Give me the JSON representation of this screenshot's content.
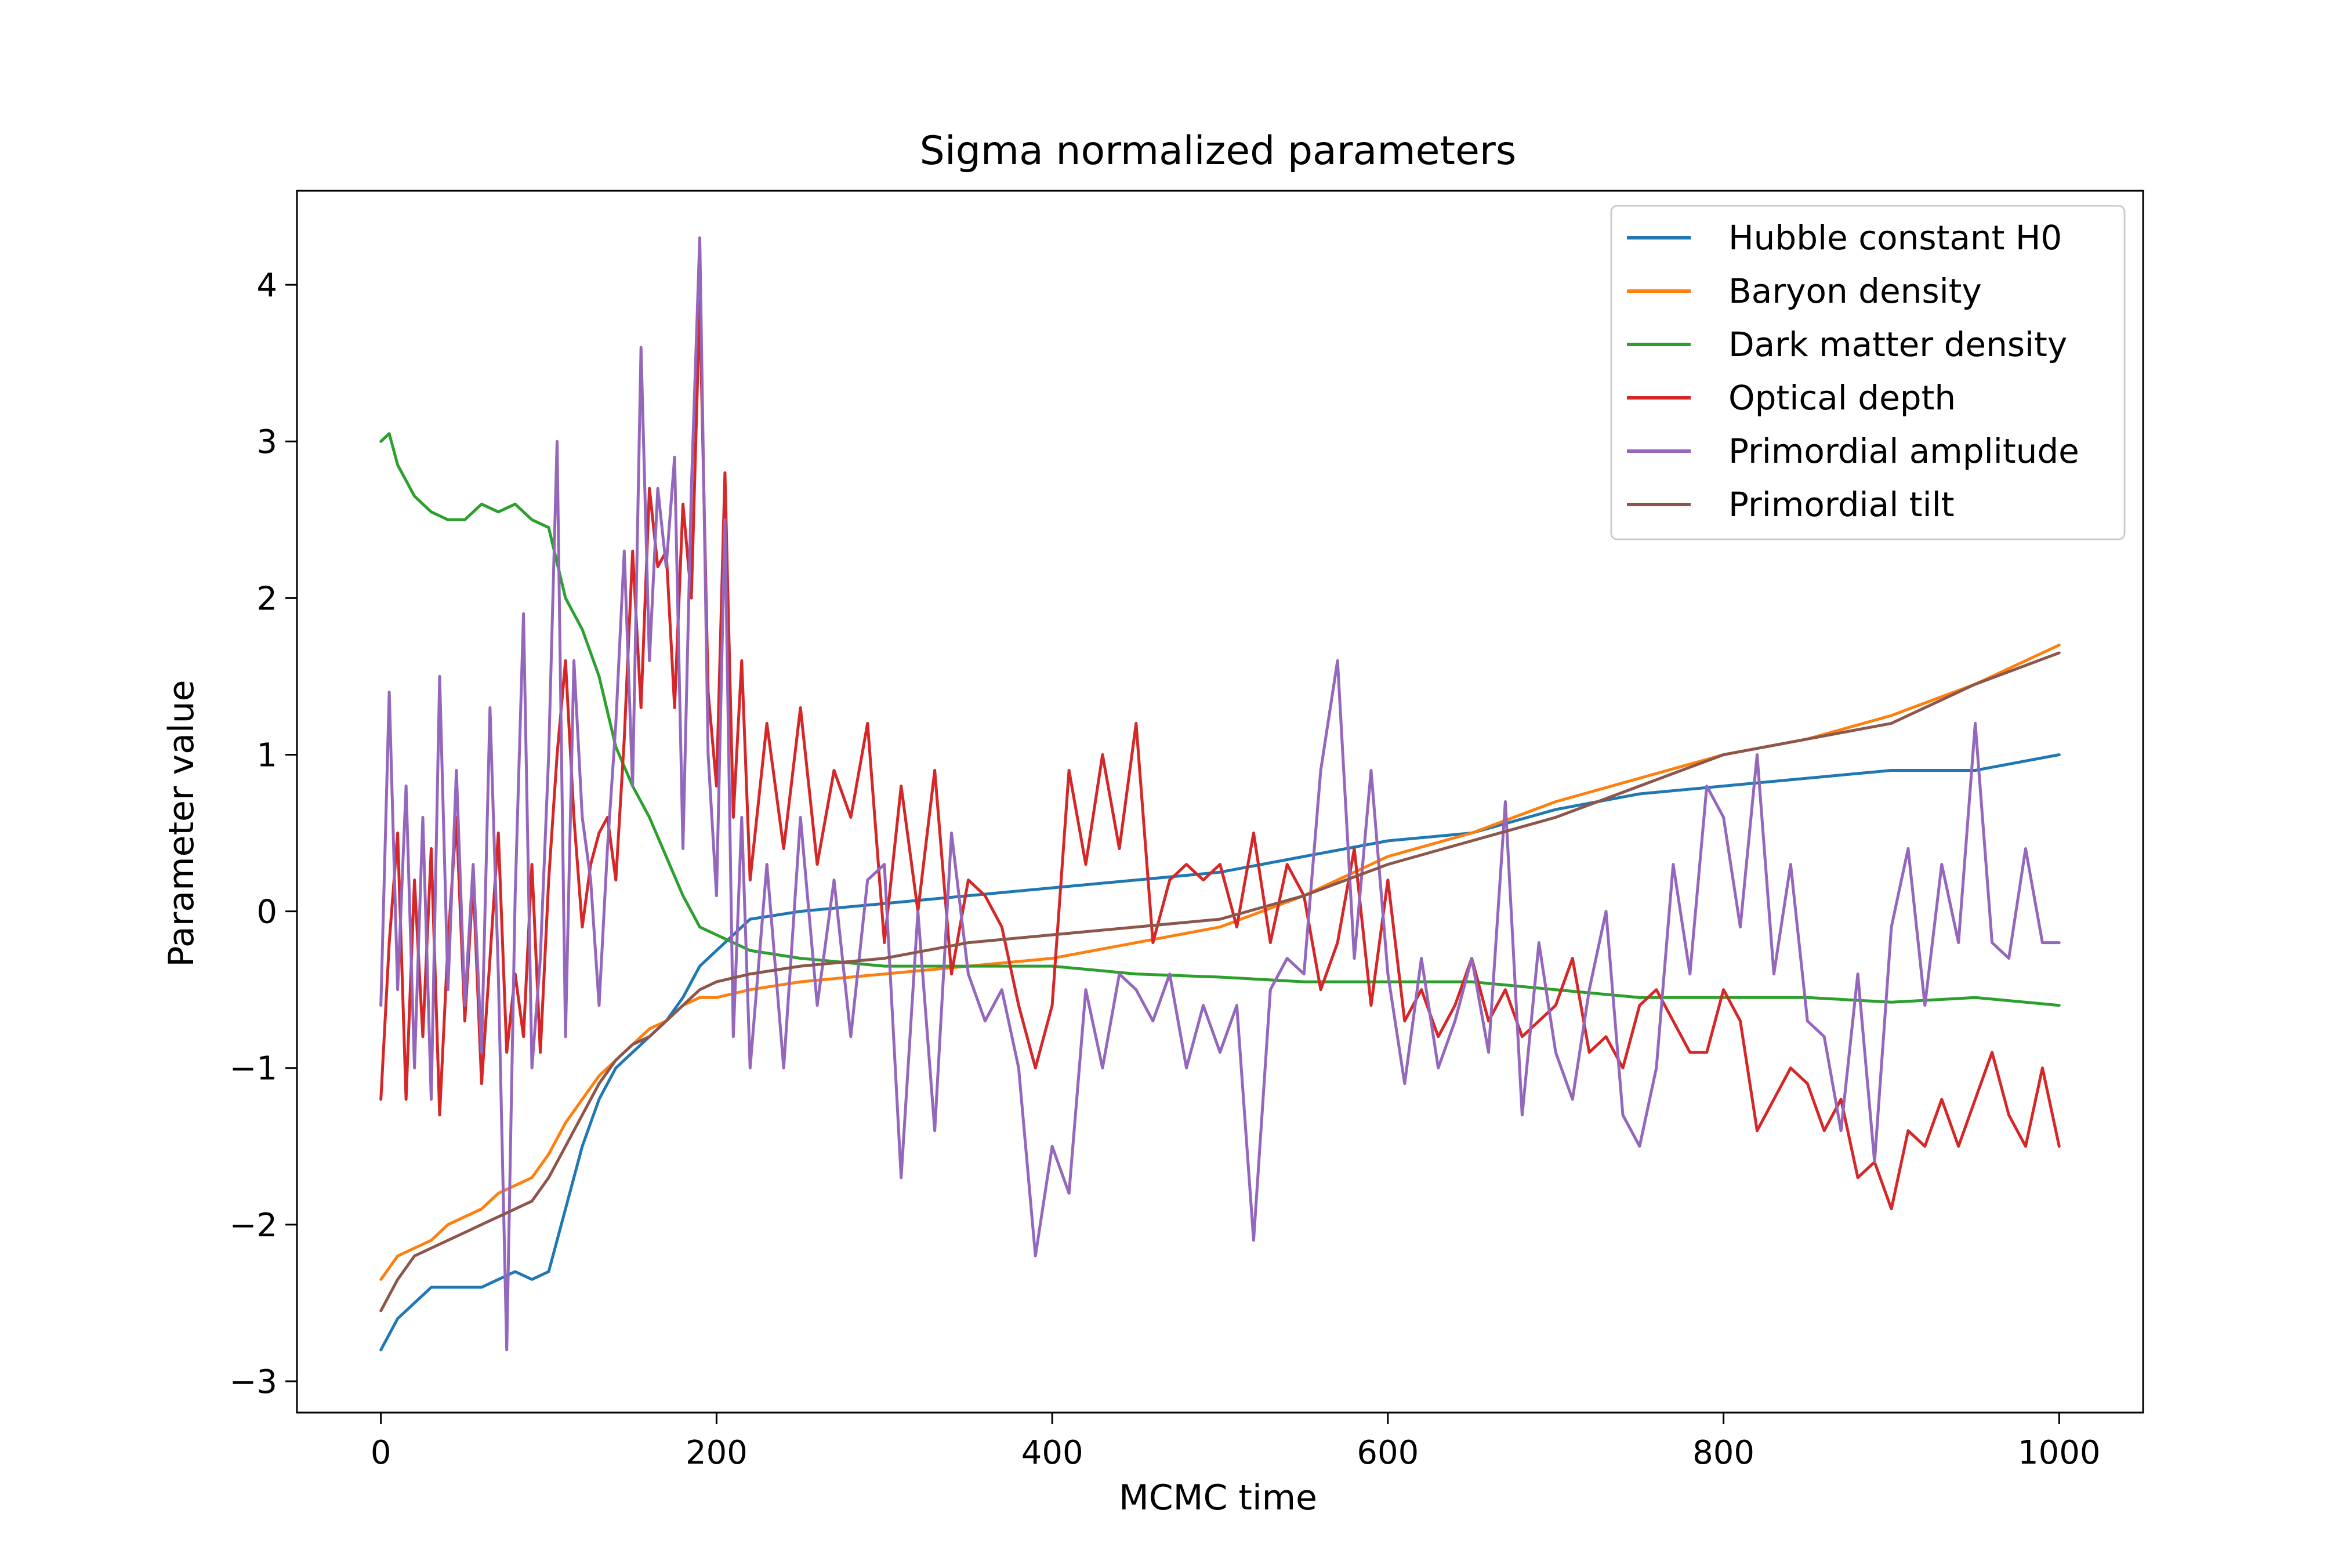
{
  "chart_data": {
    "type": "line",
    "title": "Sigma normalized parameters",
    "xlabel": "MCMC time",
    "ylabel": "Parameter value",
    "xlim": [
      -50,
      1050
    ],
    "ylim": [
      -3.2,
      4.6
    ],
    "xticks": [
      0,
      200,
      400,
      600,
      800,
      1000
    ],
    "yticks": [
      -3,
      -2,
      -1,
      0,
      1,
      2,
      3,
      4
    ],
    "xtick_labels": [
      "0",
      "200",
      "400",
      "600",
      "800",
      "1000"
    ],
    "ytick_labels": [
      "−3",
      "−2",
      "−1",
      "0",
      "1",
      "2",
      "3",
      "4"
    ],
    "grid": false,
    "legend_position": "upper right",
    "series": [
      {
        "name": "Hubble constant H0",
        "color": "#1f77b4",
        "x": [
          0,
          10,
          20,
          30,
          40,
          50,
          60,
          70,
          80,
          90,
          100,
          110,
          120,
          130,
          140,
          150,
          160,
          170,
          180,
          190,
          200,
          220,
          250,
          300,
          350,
          400,
          450,
          500,
          550,
          600,
          650,
          700,
          750,
          800,
          850,
          900,
          950,
          1000
        ],
        "values": [
          -2.8,
          -2.6,
          -2.5,
          -2.4,
          -2.4,
          -2.4,
          -2.4,
          -2.35,
          -2.3,
          -2.35,
          -2.3,
          -1.9,
          -1.5,
          -1.2,
          -1.0,
          -0.9,
          -0.8,
          -0.7,
          -0.55,
          -0.35,
          -0.25,
          -0.05,
          0.0,
          0.05,
          0.1,
          0.15,
          0.2,
          0.25,
          0.35,
          0.45,
          0.5,
          0.65,
          0.75,
          0.8,
          0.85,
          0.9,
          0.9,
          1.0
        ]
      },
      {
        "name": "Baryon density",
        "color": "#ff7f0e",
        "x": [
          0,
          10,
          20,
          30,
          40,
          50,
          60,
          70,
          80,
          90,
          100,
          110,
          120,
          130,
          140,
          150,
          160,
          170,
          180,
          190,
          200,
          220,
          250,
          300,
          350,
          400,
          450,
          500,
          550,
          600,
          650,
          700,
          750,
          800,
          850,
          900,
          950,
          1000
        ],
        "values": [
          -2.35,
          -2.2,
          -2.15,
          -2.1,
          -2.0,
          -1.95,
          -1.9,
          -1.8,
          -1.75,
          -1.7,
          -1.55,
          -1.35,
          -1.2,
          -1.05,
          -0.95,
          -0.85,
          -0.75,
          -0.7,
          -0.6,
          -0.55,
          -0.55,
          -0.5,
          -0.45,
          -0.4,
          -0.35,
          -0.3,
          -0.2,
          -0.1,
          0.1,
          0.35,
          0.5,
          0.7,
          0.85,
          1.0,
          1.1,
          1.25,
          1.45,
          1.7
        ]
      },
      {
        "name": "Dark matter density",
        "color": "#2ca02c",
        "x": [
          0,
          5,
          10,
          20,
          30,
          40,
          50,
          60,
          70,
          80,
          90,
          100,
          110,
          120,
          130,
          140,
          150,
          160,
          170,
          180,
          190,
          200,
          220,
          250,
          300,
          350,
          400,
          450,
          500,
          550,
          600,
          650,
          700,
          750,
          800,
          850,
          900,
          950,
          1000
        ],
        "values": [
          3.0,
          3.05,
          2.85,
          2.65,
          2.55,
          2.5,
          2.5,
          2.6,
          2.55,
          2.6,
          2.5,
          2.45,
          2.0,
          1.8,
          1.5,
          1.05,
          0.8,
          0.6,
          0.35,
          0.1,
          -0.1,
          -0.15,
          -0.25,
          -0.3,
          -0.35,
          -0.35,
          -0.35,
          -0.4,
          -0.42,
          -0.45,
          -0.45,
          -0.45,
          -0.5,
          -0.55,
          -0.55,
          -0.55,
          -0.58,
          -0.55,
          -0.6
        ]
      },
      {
        "name": "Optical depth",
        "color": "#d62728",
        "x": [
          0,
          5,
          10,
          15,
          20,
          25,
          30,
          35,
          40,
          45,
          50,
          55,
          60,
          65,
          70,
          75,
          80,
          85,
          90,
          95,
          100,
          105,
          110,
          115,
          120,
          125,
          130,
          135,
          140,
          145,
          150,
          155,
          160,
          165,
          170,
          175,
          180,
          185,
          190,
          195,
          200,
          205,
          210,
          215,
          220,
          230,
          240,
          250,
          260,
          270,
          280,
          290,
          300,
          310,
          320,
          330,
          340,
          350,
          360,
          370,
          380,
          390,
          400,
          410,
          420,
          430,
          440,
          450,
          460,
          470,
          480,
          490,
          500,
          510,
          520,
          530,
          540,
          550,
          560,
          570,
          580,
          590,
          600,
          610,
          620,
          630,
          640,
          650,
          660,
          670,
          680,
          690,
          700,
          710,
          720,
          730,
          740,
          750,
          760,
          770,
          780,
          790,
          800,
          810,
          820,
          830,
          840,
          850,
          860,
          870,
          880,
          890,
          900,
          910,
          920,
          930,
          940,
          950,
          960,
          970,
          980,
          990,
          1000
        ],
        "values": [
          -1.2,
          -0.2,
          0.5,
          -1.2,
          0.2,
          -0.8,
          0.4,
          -1.3,
          -0.2,
          0.6,
          -0.7,
          0.2,
          -1.1,
          -0.3,
          0.5,
          -0.9,
          -0.4,
          -0.8,
          0.3,
          -0.9,
          0.2,
          1.0,
          1.6,
          0.6,
          -0.1,
          0.3,
          0.5,
          0.6,
          0.2,
          1.1,
          2.3,
          1.3,
          2.7,
          2.2,
          2.3,
          1.3,
          2.6,
          2.0,
          3.9,
          1.4,
          0.8,
          2.8,
          0.6,
          1.6,
          0.2,
          1.2,
          0.4,
          1.3,
          0.3,
          0.9,
          0.6,
          1.2,
          -0.2,
          0.8,
          0.0,
          0.9,
          -0.4,
          0.2,
          0.1,
          -0.1,
          -0.6,
          -1.0,
          -0.6,
          0.9,
          0.3,
          1.0,
          0.4,
          1.2,
          -0.2,
          0.2,
          0.3,
          0.2,
          0.3,
          -0.1,
          0.5,
          -0.2,
          0.3,
          0.1,
          -0.5,
          -0.2,
          0.4,
          -0.6,
          0.2,
          -0.7,
          -0.5,
          -0.8,
          -0.6,
          -0.3,
          -0.7,
          -0.5,
          -0.8,
          -0.7,
          -0.6,
          -0.3,
          -0.9,
          -0.8,
          -1.0,
          -0.6,
          -0.5,
          -0.7,
          -0.9,
          -0.9,
          -0.5,
          -0.7,
          -1.4,
          -1.2,
          -1.0,
          -1.1,
          -1.4,
          -1.2,
          -1.7,
          -1.6,
          -1.9,
          -1.4,
          -1.5,
          -1.2,
          -1.5,
          -1.2,
          -0.9,
          -1.3,
          -1.5,
          -1.0,
          -1.5
        ]
      },
      {
        "name": "Primordial amplitude",
        "color": "#9467bd",
        "x": [
          0,
          5,
          10,
          15,
          20,
          25,
          30,
          35,
          40,
          45,
          50,
          55,
          60,
          65,
          70,
          75,
          80,
          85,
          90,
          95,
          100,
          105,
          110,
          115,
          120,
          125,
          130,
          135,
          140,
          145,
          150,
          155,
          160,
          165,
          170,
          175,
          180,
          185,
          190,
          195,
          200,
          205,
          210,
          215,
          220,
          230,
          240,
          250,
          260,
          270,
          280,
          290,
          300,
          310,
          320,
          330,
          340,
          350,
          360,
          370,
          380,
          390,
          400,
          410,
          420,
          430,
          440,
          450,
          460,
          470,
          480,
          490,
          500,
          510,
          520,
          530,
          540,
          550,
          560,
          570,
          580,
          590,
          600,
          610,
          620,
          630,
          640,
          650,
          660,
          670,
          680,
          690,
          700,
          710,
          720,
          730,
          740,
          750,
          760,
          770,
          780,
          790,
          800,
          810,
          820,
          830,
          840,
          850,
          860,
          870,
          880,
          890,
          900,
          910,
          920,
          930,
          940,
          950,
          960,
          970,
          980,
          990,
          1000
        ],
        "values": [
          -0.6,
          1.4,
          -0.5,
          0.8,
          -1.0,
          0.6,
          -1.2,
          1.5,
          -0.5,
          0.9,
          -0.6,
          0.3,
          -0.9,
          1.3,
          -0.4,
          -2.8,
          0.1,
          1.9,
          -1.0,
          -0.3,
          1.0,
          3.0,
          -0.8,
          1.6,
          0.6,
          0.2,
          -0.6,
          0.4,
          1.2,
          2.3,
          0.8,
          3.6,
          1.6,
          2.7,
          2.2,
          2.9,
          0.4,
          2.7,
          4.3,
          1.0,
          0.1,
          2.5,
          -0.8,
          0.6,
          -1.0,
          0.3,
          -1.0,
          0.6,
          -0.6,
          0.2,
          -0.8,
          0.2,
          0.3,
          -1.7,
          0.0,
          -1.4,
          0.5,
          -0.4,
          -0.7,
          -0.5,
          -1.0,
          -2.2,
          -1.5,
          -1.8,
          -0.5,
          -1.0,
          -0.4,
          -0.5,
          -0.7,
          -0.4,
          -1.0,
          -0.6,
          -0.9,
          -0.6,
          -2.1,
          -0.5,
          -0.3,
          -0.4,
          0.9,
          1.6,
          -0.3,
          0.9,
          -0.4,
          -1.1,
          -0.3,
          -1.0,
          -0.7,
          -0.3,
          -0.9,
          0.7,
          -1.3,
          -0.2,
          -0.9,
          -1.2,
          -0.5,
          0.0,
          -1.3,
          -1.5,
          -1.0,
          0.3,
          -0.4,
          0.8,
          0.6,
          -0.1,
          1.0,
          -0.4,
          0.3,
          -0.7,
          -0.8,
          -1.4,
          -0.4,
          -1.6,
          -0.1,
          0.4,
          -0.6,
          0.3,
          -0.2,
          1.2,
          -0.2,
          -0.3,
          0.4,
          -0.2,
          -0.2
        ]
      },
      {
        "name": "Primordial tilt",
        "color": "#8c564b",
        "x": [
          0,
          10,
          20,
          30,
          40,
          50,
          60,
          70,
          80,
          90,
          100,
          110,
          120,
          130,
          140,
          150,
          160,
          170,
          180,
          190,
          200,
          220,
          250,
          300,
          350,
          400,
          450,
          500,
          550,
          600,
          650,
          700,
          750,
          800,
          850,
          900,
          950,
          1000
        ],
        "values": [
          -2.55,
          -2.35,
          -2.2,
          -2.15,
          -2.1,
          -2.05,
          -2.0,
          -1.95,
          -1.9,
          -1.85,
          -1.7,
          -1.5,
          -1.3,
          -1.1,
          -0.95,
          -0.85,
          -0.8,
          -0.7,
          -0.6,
          -0.5,
          -0.45,
          -0.4,
          -0.35,
          -0.3,
          -0.2,
          -0.15,
          -0.1,
          -0.05,
          0.1,
          0.3,
          0.45,
          0.6,
          0.8,
          1.0,
          1.1,
          1.2,
          1.45,
          1.65
        ]
      }
    ]
  }
}
